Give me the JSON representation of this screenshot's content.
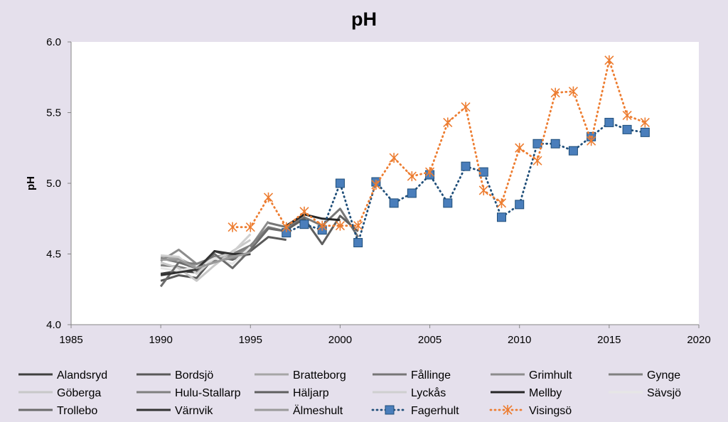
{
  "chart_data": {
    "type": "line",
    "title": "pH",
    "xlabel": "",
    "ylabel": "pH",
    "xlim": [
      1985,
      2020
    ],
    "ylim": [
      4.0,
      6.0
    ],
    "xticks": [
      "1985",
      "1990",
      "1995",
      "2000",
      "2005",
      "2010",
      "2015",
      "2020"
    ],
    "yticks": [
      "4.0",
      "4.5",
      "5.0",
      "5.5",
      "6.0"
    ],
    "grid": false,
    "legend_position": "bottom",
    "series": [
      {
        "name": "Alandsryd",
        "color": "#404040",
        "style": "solid",
        "x": [
          1990,
          1991,
          1992,
          1993,
          1994,
          1995
        ],
        "y": [
          4.36,
          4.38,
          4.37,
          4.52,
          4.48,
          4.5
        ]
      },
      {
        "name": "Bordsjö",
        "color": "#595959",
        "style": "solid",
        "x": [
          1990,
          1991,
          1992,
          1993,
          1994,
          1995,
          1996,
          1997
        ],
        "y": [
          4.31,
          4.35,
          4.33,
          4.48,
          4.46,
          4.52,
          4.62,
          4.6
        ]
      },
      {
        "name": "Bratteborg",
        "color": "#a6a6a6",
        "style": "solid",
        "x": [
          1990,
          1991,
          1992,
          1993,
          1994,
          1995
        ],
        "y": [
          4.48,
          4.47,
          4.41,
          4.47,
          4.5,
          4.52
        ]
      },
      {
        "name": "Fållinge",
        "color": "#767676",
        "style": "solid",
        "x": [
          1996,
          1997,
          1998,
          1999,
          2000,
          2001
        ],
        "y": [
          4.72,
          4.69,
          4.76,
          4.7,
          4.82,
          4.62
        ]
      },
      {
        "name": "Grimhult",
        "color": "#8c8c8c",
        "style": "solid",
        "x": [
          1990,
          1991,
          1992,
          1993,
          1994,
          1995,
          1996
        ],
        "y": [
          4.45,
          4.53,
          4.43,
          4.47,
          4.49,
          4.55,
          4.73
        ]
      },
      {
        "name": "Gynge",
        "color": "#808080",
        "style": "solid",
        "x": [
          1990,
          1991,
          1992,
          1993,
          1994,
          1995
        ],
        "y": [
          4.42,
          4.41,
          4.38,
          4.45,
          4.47,
          4.5
        ]
      },
      {
        "name": "Göberga",
        "color": "#c8c8c8",
        "style": "solid",
        "x": [
          1990,
          1991,
          1992,
          1993,
          1994,
          1995
        ],
        "y": [
          4.44,
          4.4,
          4.31,
          4.42,
          4.52,
          4.6
        ]
      },
      {
        "name": "Hulu-Stallarp",
        "color": "#7f7f7f",
        "style": "solid",
        "x": [
          1990,
          1991,
          1992,
          1993,
          1994,
          1995,
          1996,
          1997
        ],
        "y": [
          4.47,
          4.44,
          4.43,
          4.48,
          4.5,
          4.56,
          4.69,
          4.66
        ]
      },
      {
        "name": "Häljarp",
        "color": "#5f5f5f",
        "style": "solid",
        "x": [
          1997,
          1998,
          1999,
          2000,
          2001
        ],
        "y": [
          4.67,
          4.75,
          4.57,
          4.77,
          4.66
        ]
      },
      {
        "name": "Lyckås",
        "color": "#cfcfcf",
        "style": "solid",
        "x": [
          1990,
          1991,
          1992,
          1993,
          1994,
          1995
        ],
        "y": [
          4.49,
          4.48,
          4.36,
          4.47,
          4.51,
          4.64
        ]
      },
      {
        "name": "Mellby",
        "color": "#262626",
        "style": "solid",
        "x": [
          1997,
          1998,
          1999,
          2000
        ],
        "y": [
          4.7,
          4.78,
          4.75,
          4.74
        ]
      },
      {
        "name": "Sävsjö",
        "color": "#e6e6e6",
        "style": "solid",
        "x": [
          1990,
          1991,
          1992,
          1993,
          1994,
          1995
        ],
        "y": [
          4.4,
          4.38,
          4.41,
          4.47,
          4.43,
          4.55
        ]
      },
      {
        "name": "Trollebo",
        "color": "#6b6b6b",
        "style": "solid",
        "x": [
          1990,
          1991,
          1992,
          1993,
          1994,
          1995,
          1996,
          1997
        ],
        "y": [
          4.27,
          4.44,
          4.4,
          4.5,
          4.4,
          4.53,
          4.68,
          4.66
        ]
      },
      {
        "name": "Värnvik",
        "color": "#333333",
        "style": "solid",
        "x": [
          1990,
          1991,
          1992,
          1993,
          1994,
          1995
        ],
        "y": [
          4.35,
          4.37,
          4.39,
          4.52,
          4.5,
          4.5
        ]
      },
      {
        "name": "Älmeshult",
        "color": "#9a9a9a",
        "style": "solid",
        "x": [
          1990,
          1991,
          1992,
          1993,
          1994,
          1995
        ],
        "y": [
          4.46,
          4.46,
          4.4,
          4.44,
          4.48,
          4.51
        ]
      },
      {
        "name": "Fagerhult",
        "color": "#1f4e79",
        "marker_fill": "#4a7ebb",
        "style": "dotted",
        "marker": "square",
        "x": [
          1997,
          1998,
          1999,
          2000,
          2001,
          2002,
          2003,
          2004,
          2005,
          2006,
          2007,
          2008,
          2009,
          2010,
          2011,
          2012,
          2013,
          2014,
          2015,
          2016,
          2017
        ],
        "y": [
          4.65,
          4.71,
          4.67,
          5.0,
          4.58,
          5.01,
          4.86,
          4.93,
          5.06,
          4.86,
          5.12,
          5.08,
          4.76,
          4.85,
          5.28,
          5.28,
          5.23,
          5.33,
          5.43,
          5.38,
          5.36
        ]
      },
      {
        "name": "Visingsö",
        "color": "#ed7d31",
        "style": "dotted",
        "marker": "asterisk",
        "x": [
          1994,
          1995,
          1996,
          1997,
          1998,
          1999,
          2000,
          2001,
          2002,
          2003,
          2004,
          2005,
          2006,
          2007,
          2008,
          2009,
          2010,
          2011,
          2012,
          2013,
          2014,
          2015,
          2016,
          2017
        ],
        "y": [
          4.69,
          4.69,
          4.9,
          4.69,
          4.8,
          4.7,
          4.7,
          4.7,
          4.99,
          5.18,
          5.05,
          5.08,
          5.43,
          5.54,
          4.95,
          4.86,
          5.25,
          5.16,
          5.64,
          5.65,
          5.3,
          5.87,
          5.48,
          5.43
        ]
      }
    ]
  }
}
